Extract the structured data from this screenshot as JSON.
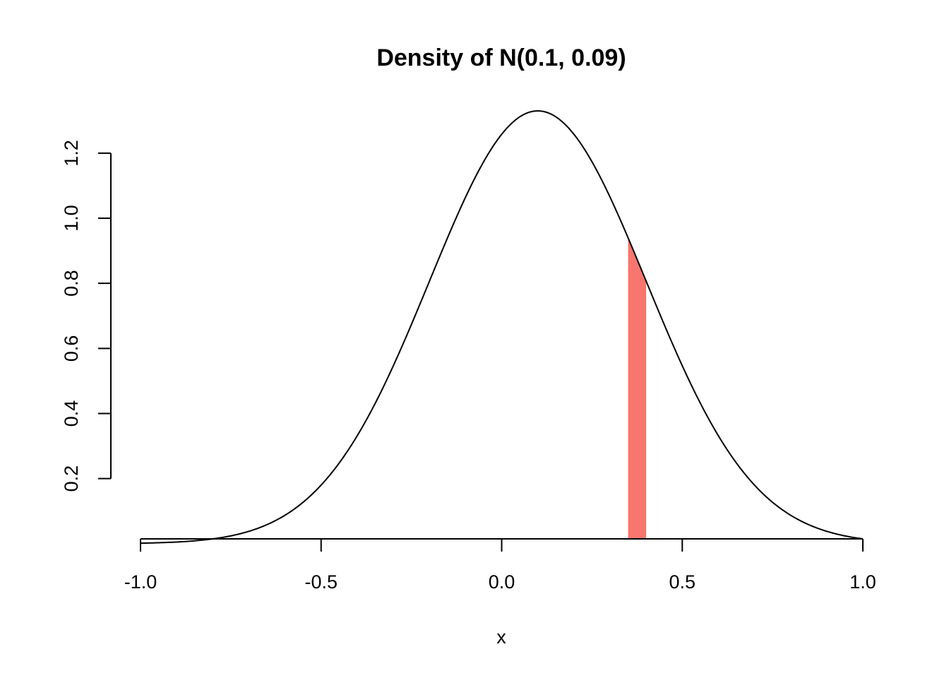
{
  "chart_data": {
    "type": "line",
    "title": "Density of N(0.1, 0.09)",
    "xlabel": "x",
    "ylabel": "",
    "distribution": {
      "family": "normal",
      "mean": 0.1,
      "variance": 0.09,
      "sd": 0.3
    },
    "xlim": [
      -1.0,
      1.0
    ],
    "ylim": [
      0.0148,
      1.3298
    ],
    "x_ticks": [
      -1.0,
      -0.5,
      0.0,
      0.5,
      1.0
    ],
    "x_tick_labels": [
      "-1.0",
      "-0.5",
      "0.0",
      "0.5",
      "1.0"
    ],
    "y_ticks": [
      0.2,
      0.4,
      0.6,
      0.8,
      1.0,
      1.2
    ],
    "y_tick_labels": [
      "0.2",
      "0.4",
      "0.6",
      "0.8",
      "1.0",
      "1.2"
    ],
    "highlight": {
      "x_from": 0.35,
      "x_to": 0.4,
      "color": "#F8766D"
    },
    "curve_color": "#000000",
    "grid": false,
    "legend": "none"
  }
}
